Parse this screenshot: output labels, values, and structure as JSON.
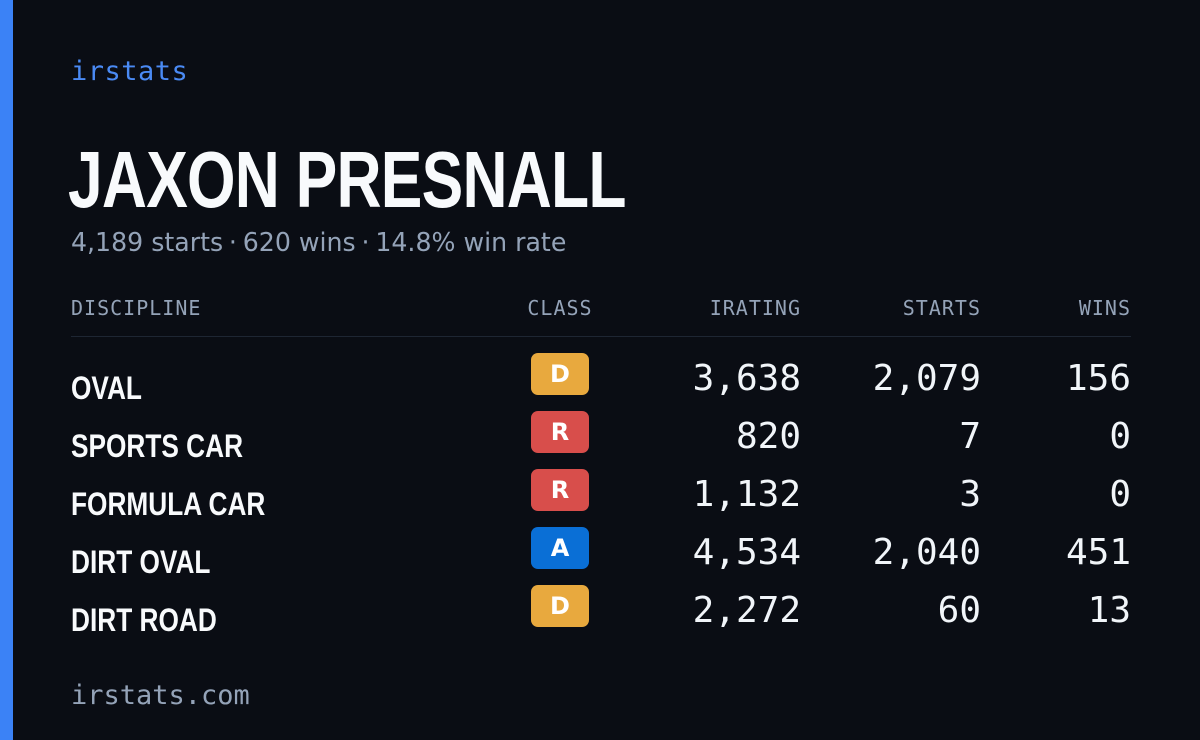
{
  "brand": "irstats",
  "driver": {
    "name": "JAXON PRESNALL",
    "starts_text": "4,189 starts",
    "wins_text": "620 wins",
    "win_rate_text": "14.8% win rate",
    "separator": "·"
  },
  "table": {
    "headers": [
      "DISCIPLINE",
      "CLASS",
      "IRATING",
      "STARTS",
      "WINS"
    ],
    "rows": [
      {
        "discipline": "OVAL",
        "class": "D",
        "class_color": "#e8a93e",
        "irating": "3,638",
        "starts": "2,079",
        "wins": "156"
      },
      {
        "discipline": "SPORTS CAR",
        "class": "R",
        "class_color": "#d84e4b",
        "irating": "820",
        "starts": "7",
        "wins": "0"
      },
      {
        "discipline": "FORMULA CAR",
        "class": "R",
        "class_color": "#d84e4b",
        "irating": "1,132",
        "starts": "3",
        "wins": "0"
      },
      {
        "discipline": "DIRT OVAL",
        "class": "A",
        "class_color": "#0a6fd6",
        "irating": "4,534",
        "starts": "2,040",
        "wins": "451"
      },
      {
        "discipline": "DIRT ROAD",
        "class": "D",
        "class_color": "#e8a93e",
        "irating": "2,272",
        "starts": "60",
        "wins": "13"
      }
    ]
  },
  "footer": "irstats.com",
  "colors": {
    "background": "#0a0d14",
    "accent": "#3b82f6",
    "muted_text": "#94a3b8"
  }
}
